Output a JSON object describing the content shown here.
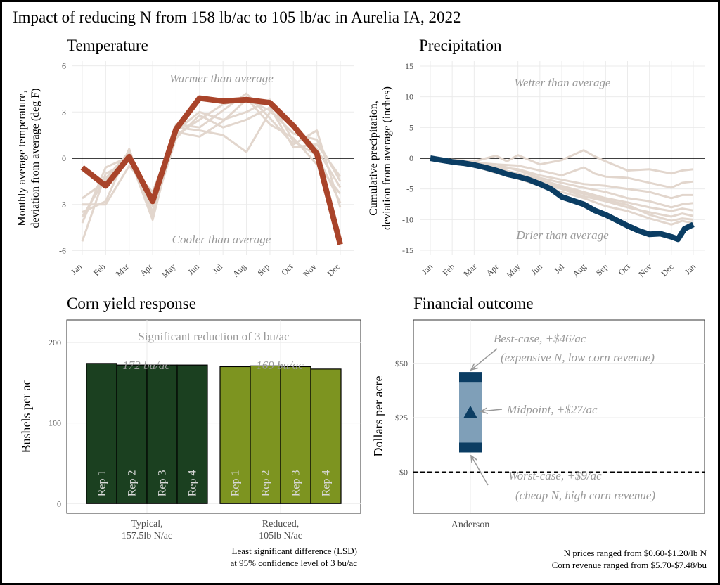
{
  "title": "Impact of reducing N from 158 lb/ac to 105 lb/ac in Aurelia IA, 2022",
  "colors": {
    "temp_highlight": "#a9442a",
    "precip_highlight": "#0b3d63",
    "history": "#e2d6cd",
    "typical_bar": "#1b4020",
    "reduced_bar": "#7d9420",
    "range_fill": "#7f9fb8",
    "range_cap": "#0b3d63",
    "annotation": "#999999"
  },
  "chart_data": [
    {
      "type": "line",
      "panel_title": "Temperature",
      "ylabel": [
        "Monthly average temperature,",
        "deviation from average (deg F)"
      ],
      "ylim": [
        -6.3,
        6.3
      ],
      "yticks": [
        -6,
        -3,
        0,
        3,
        6
      ],
      "categories": [
        "Jan",
        "Feb",
        "Mar",
        "Apr",
        "May",
        "Jun",
        "Jul",
        "Aug",
        "Sep",
        "Oct",
        "Nov",
        "Dec"
      ],
      "top_note": "Warmer than average",
      "bottom_note": "Cooler than average",
      "highlight": {
        "values": [
          -0.6,
          -1.8,
          0.1,
          -2.8,
          1.9,
          3.9,
          3.7,
          3.8,
          3.6,
          2.1,
          0.3,
          -5.6
        ]
      },
      "history": [
        [
          -3.5,
          -2.8,
          0.6,
          -3.8,
          1.7,
          1.4,
          2.4,
          3.8,
          3.1,
          1.6,
          1.2,
          -1.5
        ],
        [
          -5.4,
          -1.0,
          -0.2,
          -2.5,
          2.2,
          2.0,
          3.1,
          4.2,
          2.6,
          0.9,
          1.8,
          -3.2
        ],
        [
          -2.6,
          -1.5,
          0.3,
          -3.1,
          1.5,
          2.5,
          3.5,
          3.9,
          2.2,
          1.3,
          -0.4,
          -2.3
        ],
        [
          -4.2,
          -0.6,
          0.1,
          -4.0,
          2.0,
          1.8,
          1.5,
          0.4,
          3.0,
          2.2,
          0.6,
          -1.9
        ],
        [
          -3.0,
          -3.0,
          -0.5,
          -2.2,
          1.8,
          3.0,
          2.5,
          3.0,
          3.8,
          1.1,
          0.2,
          -2.9
        ],
        [
          -3.8,
          -1.3,
          0.4,
          -3.5,
          1.3,
          2.8,
          2.0,
          2.5,
          3.3,
          0.7,
          0.9,
          -1.2
        ]
      ]
    },
    {
      "type": "line",
      "panel_title": "Precipitation",
      "ylabel": [
        "Cumulative precipitation,",
        "deviation from average (inches)"
      ],
      "ylim": [
        -15.8,
        15.8
      ],
      "yticks": [
        -15,
        -10,
        -5,
        0,
        5,
        10,
        15
      ],
      "xticks": [
        "Jan",
        "Feb",
        "Mar",
        "Apr",
        "May",
        "Jun",
        "Jul",
        "Aug",
        "Sep",
        "Oct",
        "Nov",
        "Dec",
        "Jan"
      ],
      "top_note": "Wetter than average",
      "bottom_note": "Drier than average",
      "highlight": {
        "x": [
          0,
          0.5,
          1,
          1.5,
          2,
          2.5,
          3,
          3.5,
          4,
          4.5,
          5,
          5.5,
          6,
          6.5,
          7,
          7.5,
          8,
          8.5,
          9,
          9.5,
          10,
          10.5,
          11,
          11.3,
          11.6,
          12
        ],
        "y": [
          0,
          -0.3,
          -0.6,
          -0.8,
          -1.1,
          -1.5,
          -2.0,
          -2.6,
          -3.0,
          -3.5,
          -4.2,
          -5.0,
          -6.3,
          -6.9,
          -7.5,
          -8.5,
          -9.2,
          -10.1,
          -11.0,
          -11.8,
          -12.4,
          -12.3,
          -12.8,
          -13.2,
          -11.5,
          -10.8
        ]
      },
      "history": [
        {
          "x": [
            0,
            2,
            3,
            3.5,
            4,
            5,
            6,
            7,
            7.5,
            8,
            9,
            10,
            11,
            11.5,
            12
          ],
          "y": [
            0,
            -0.5,
            0.4,
            -0.5,
            0.5,
            -1.0,
            -0.3,
            1.3,
            0.3,
            -0.5,
            -2.0,
            -1.8,
            -2.5,
            -2.0,
            -1.8
          ]
        },
        {
          "x": [
            0,
            2,
            3,
            4,
            5,
            6,
            7,
            7.5,
            8,
            9,
            10,
            11,
            11.5,
            12
          ],
          "y": [
            0,
            -0.8,
            -1.0,
            -1.2,
            -2.0,
            -2.8,
            -1.5,
            -2.5,
            -3.0,
            -3.2,
            -4.0,
            -4.8,
            -4.0,
            -3.8
          ]
        },
        {
          "x": [
            0,
            2,
            3,
            4,
            5,
            6,
            7,
            8,
            9,
            10,
            11,
            11.5,
            12
          ],
          "y": [
            0,
            -0.5,
            -1.4,
            -1.8,
            -2.8,
            -3.5,
            -4.2,
            -4.5,
            -5.0,
            -5.5,
            -6.5,
            -6.0,
            -6.0
          ]
        },
        {
          "x": [
            0,
            2,
            3,
            4,
            5,
            6,
            7,
            8,
            9,
            10,
            11,
            11.5,
            12
          ],
          "y": [
            0,
            -0.7,
            -1.0,
            -2.0,
            -3.2,
            -4.0,
            -4.8,
            -5.5,
            -6.5,
            -7.0,
            -8.0,
            -7.5,
            -7.3
          ]
        },
        {
          "x": [
            0,
            2,
            3,
            4,
            5,
            6,
            7,
            8,
            9,
            10,
            11,
            11.5,
            12
          ],
          "y": [
            0,
            -1.0,
            -1.6,
            -2.5,
            -3.5,
            -4.5,
            -5.5,
            -6.5,
            -7.2,
            -8.0,
            -8.6,
            -8.2,
            -8.5
          ]
        },
        {
          "x": [
            0,
            2,
            3,
            4,
            5,
            6,
            7,
            8,
            9,
            10,
            11,
            11.5,
            12
          ],
          "y": [
            0,
            -1.2,
            -2.0,
            -3.0,
            -4.2,
            -5.0,
            -6.2,
            -7.0,
            -8.0,
            -8.8,
            -9.5,
            -9.0,
            -9.4
          ]
        },
        {
          "x": [
            0,
            2,
            3,
            4,
            5,
            6,
            7,
            8,
            9,
            10,
            11,
            11.5,
            12
          ],
          "y": [
            0,
            -0.9,
            -1.8,
            -2.7,
            -3.8,
            -4.8,
            -5.8,
            -6.8,
            -7.6,
            -9.2,
            -10.2,
            -9.8,
            -10.0
          ]
        },
        {
          "x": [
            0,
            2,
            3,
            4,
            5,
            6,
            7,
            8,
            9,
            10,
            11,
            11.5,
            12
          ],
          "y": [
            0,
            -1.3,
            -2.4,
            -3.3,
            -4.5,
            -5.5,
            -6.5,
            -7.8,
            -8.6,
            -9.8,
            -10.8,
            -10.2,
            -10.6
          ]
        }
      ]
    },
    {
      "type": "bar",
      "panel_title": "Corn yield response",
      "ylabel": "Bushels per ac",
      "ylim": [
        -12,
        228
      ],
      "yticks": [
        0,
        100,
        200
      ],
      "note": "Significant reduction of 3 bu/ac",
      "footnote": [
        "Least significant difference (LSD)",
        "at 95% confidence level of 3 bu/ac"
      ],
      "groups": [
        {
          "label": [
            "Typical,",
            "157.5lb N/ac"
          ],
          "mean_label": "172 bu/ac",
          "reps": [
            "Rep 1",
            "Rep 2",
            "Rep 3",
            "Rep 4"
          ],
          "values": [
            174,
            172,
            172,
            172
          ]
        },
        {
          "label": [
            "Reduced,",
            "105lb N/ac"
          ],
          "mean_label": "169 bu/ac",
          "reps": [
            "Rep 1",
            "Rep 2",
            "Rep 3",
            "Rep 4"
          ],
          "values": [
            170,
            171,
            170,
            167
          ]
        }
      ]
    },
    {
      "type": "range",
      "panel_title": "Financial outcome",
      "ylabel": "Dollars per acre",
      "ylim": [
        -19,
        70
      ],
      "yticks": [
        0,
        25,
        50
      ],
      "ytick_labels": [
        "$0",
        "$25",
        "$50"
      ],
      "category": "Anderson",
      "best": 46,
      "mid": 27,
      "worst": 9,
      "labels": {
        "best": [
          "Best-case, +$46/ac",
          "(expensive N, low corn revenue)"
        ],
        "mid": "Midpoint, +$27/ac",
        "worst": [
          "Worst-case, +$9/ac",
          "(cheap N,  high corn revenue)"
        ]
      },
      "footnote": [
        "N prices ranged from $0.60-$1.20/lb N",
        "Corn revenue ranged from $5.70-$7.48/bu"
      ]
    }
  ]
}
